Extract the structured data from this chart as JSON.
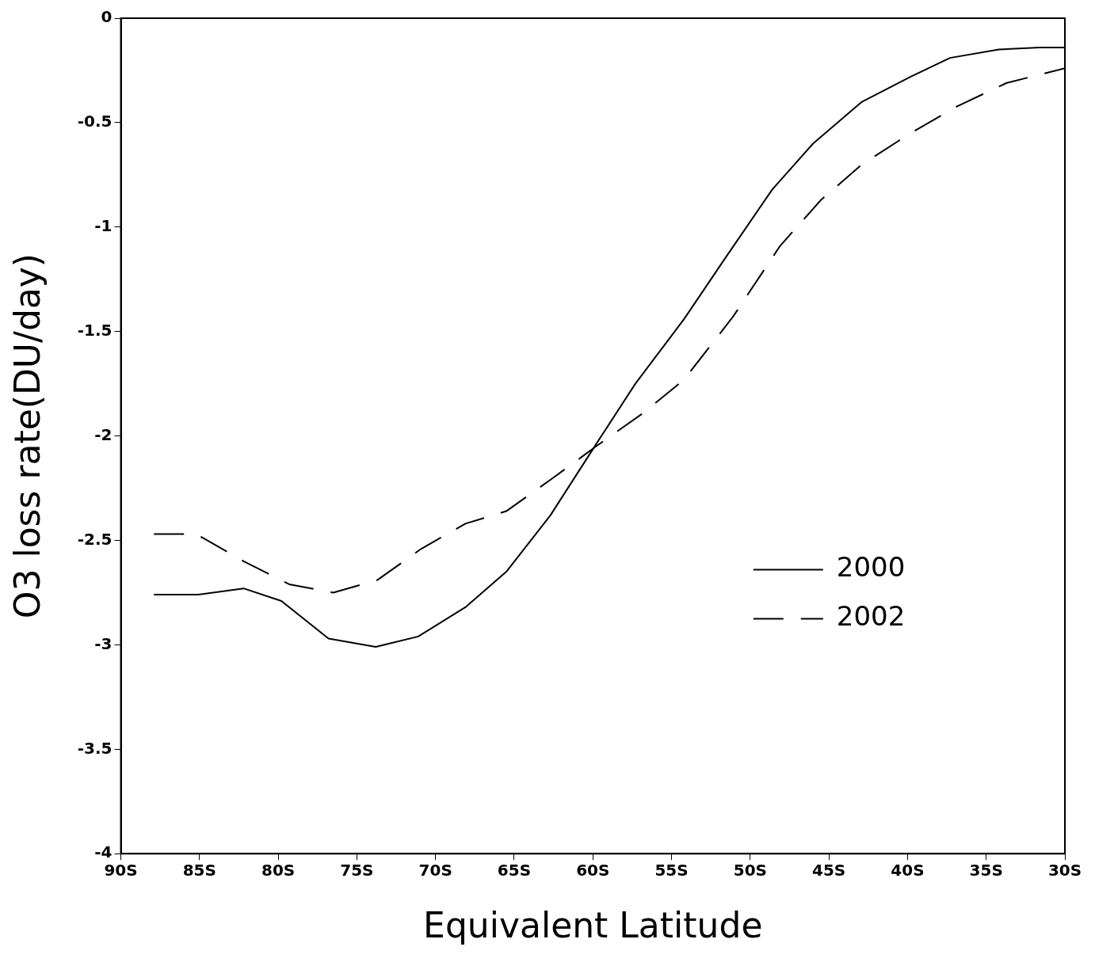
{
  "chart_data": {
    "type": "line",
    "xlabel": "Equivalent Latitude",
    "ylabel": "O3 loss rate(DU/day)",
    "xlim": [
      -90,
      -30
    ],
    "xticks": [
      {
        "value": -90,
        "label": "90S"
      },
      {
        "value": -85,
        "label": "85S"
      },
      {
        "value": -80,
        "label": "80S"
      },
      {
        "value": -75,
        "label": "75S"
      },
      {
        "value": -70,
        "label": "70S"
      },
      {
        "value": -65,
        "label": "65S"
      },
      {
        "value": -60,
        "label": "60S"
      },
      {
        "value": -55,
        "label": "55S"
      },
      {
        "value": -50,
        "label": "50S"
      },
      {
        "value": -45,
        "label": "45S"
      },
      {
        "value": -40,
        "label": "40S"
      },
      {
        "value": -35,
        "label": "35S"
      },
      {
        "value": -30,
        "label": "30S"
      }
    ],
    "ylim": [
      -4,
      0
    ],
    "yticks": [
      -4,
      -3.5,
      -3,
      -2.5,
      -2,
      -1.5,
      -1,
      -0.5,
      0
    ],
    "grid": false,
    "legend": "right",
    "marker": "none",
    "series": [
      {
        "name": "2000",
        "color": "#000000",
        "line_style": "solid",
        "x": [
          -87.9,
          -85.1,
          -82.2,
          -79.8,
          -76.8,
          -73.8,
          -71.1,
          -68.1,
          -65.5,
          -62.7,
          -59.8,
          -57.3,
          -54.2,
          -51.6,
          -48.6,
          -46.0,
          -42.9,
          -39.8,
          -37.3,
          -34.2,
          -31.6,
          -30
        ],
        "values": [
          -2.76,
          -2.76,
          -2.73,
          -2.79,
          -2.97,
          -3.01,
          -2.96,
          -2.82,
          -2.65,
          -2.38,
          -2.04,
          -1.75,
          -1.44,
          -1.15,
          -0.82,
          -0.6,
          -0.4,
          -0.28,
          -0.19,
          -0.15,
          -0.14,
          -0.14
        ]
      },
      {
        "name": "2002",
        "color": "#000000",
        "line_style": "dashed",
        "x": [
          -87.9,
          -85.2,
          -82.2,
          -79.3,
          -76.5,
          -73.7,
          -70.9,
          -68.1,
          -65.5,
          -62.7,
          -59.8,
          -56.8,
          -54.2,
          -51.1,
          -48.1,
          -45.5,
          -42.9,
          -39.8,
          -36.8,
          -33.7,
          -30
        ],
        "values": [
          -2.47,
          -2.47,
          -2.6,
          -2.71,
          -2.75,
          -2.69,
          -2.54,
          -2.42,
          -2.36,
          -2.21,
          -2.05,
          -1.89,
          -1.73,
          -1.43,
          -1.09,
          -0.87,
          -0.7,
          -0.55,
          -0.42,
          -0.31,
          -0.24
        ]
      }
    ]
  }
}
